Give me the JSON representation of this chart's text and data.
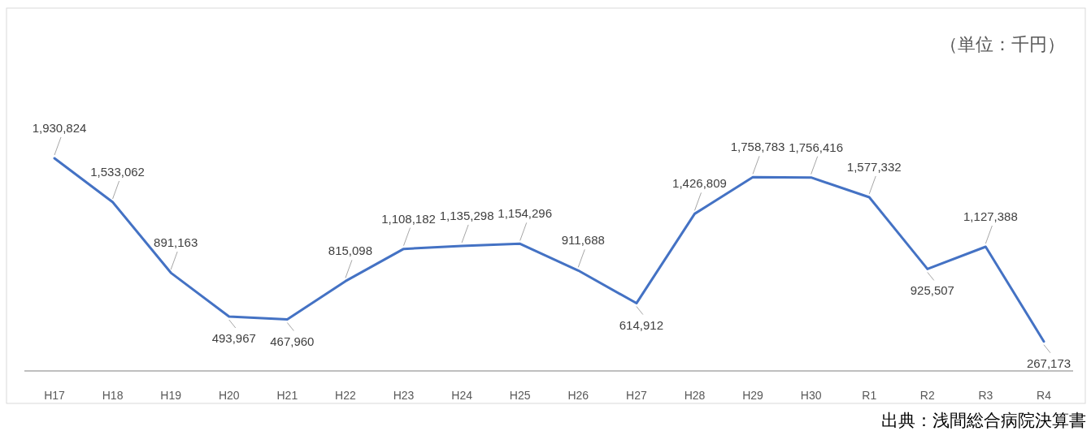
{
  "chart_data": {
    "type": "line",
    "categories": [
      "H17",
      "H18",
      "H19",
      "H20",
      "H21",
      "H22",
      "H23",
      "H24",
      "H25",
      "H26",
      "H27",
      "H28",
      "H29",
      "H30",
      "R1",
      "R2",
      "R3",
      "R4"
    ],
    "values": [
      1930824,
      1533062,
      891163,
      493967,
      467960,
      815098,
      1108182,
      1135298,
      1154296,
      911688,
      614912,
      1426809,
      1758783,
      1756416,
      1577332,
      925507,
      1127388,
      267173
    ],
    "value_labels": [
      "1,930,824",
      "1,533,062",
      "891,163",
      "493,967",
      "467,960",
      "815,098",
      "1,108,182",
      "1,135,298",
      "1,154,296",
      "911,688",
      "614,912",
      "1,426,809",
      "1,758,783",
      "1,756,416",
      "1,577,332",
      "925,507",
      "1,127,388",
      "267,173"
    ],
    "color": "#4472c4",
    "annotations": [
      "（単位：千円）",
      "出典：浅間総合病院決算書"
    ]
  }
}
